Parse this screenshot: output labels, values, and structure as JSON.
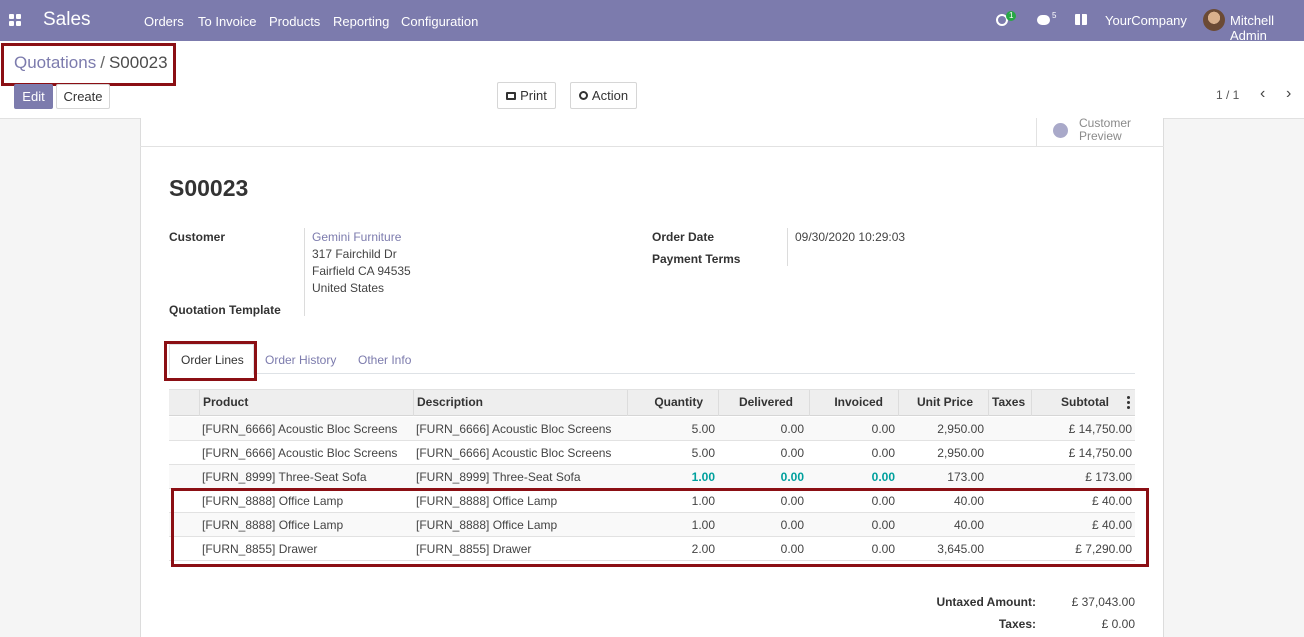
{
  "navbar": {
    "app_name": "Sales",
    "menu": [
      "Orders",
      "To Invoice",
      "Products",
      "Reporting",
      "Configuration"
    ],
    "activity_count": "1",
    "message_count": "5",
    "company": "YourCompany",
    "user": "Mitchell Admin"
  },
  "breadcrumb": {
    "parent": "Quotations",
    "separator": "/",
    "current": "S00023"
  },
  "buttons": {
    "edit": "Edit",
    "create": "Create",
    "print": "Print",
    "action": "Action"
  },
  "pager": {
    "value": "1 / 1"
  },
  "smart_button": {
    "line1": "Customer",
    "line2": "Preview"
  },
  "record": {
    "name": "S00023",
    "customer_label": "Customer",
    "customer_name": "Gemini Furniture",
    "address_line1": "317 Fairchild Dr",
    "address_line2": "Fairfield CA 94535",
    "address_line3": "United States",
    "template_label": "Quotation Template",
    "order_date_label": "Order Date",
    "order_date": "09/30/2020 10:29:03",
    "payment_terms_label": "Payment Terms"
  },
  "tabs": [
    "Order Lines",
    "Order History",
    "Other Info"
  ],
  "table": {
    "headers": [
      "Product",
      "Description",
      "Quantity",
      "Delivered",
      "Invoiced",
      "Unit Price",
      "Taxes",
      "Subtotal"
    ],
    "rows": [
      [
        "[FURN_6666] Acoustic Bloc Screens",
        "[FURN_6666] Acoustic Bloc Screens",
        "5.00",
        "0.00",
        "0.00",
        "2,950.00",
        "",
        "£ 14,750.00"
      ],
      [
        "[FURN_6666] Acoustic Bloc Screens",
        "[FURN_6666] Acoustic Bloc Screens",
        "5.00",
        "0.00",
        "0.00",
        "2,950.00",
        "",
        "£ 14,750.00"
      ],
      [
        "[FURN_8999] Three-Seat Sofa",
        "[FURN_8999] Three-Seat Sofa",
        "1.00",
        "0.00",
        "0.00",
        "173.00",
        "",
        "£ 173.00"
      ],
      [
        "[FURN_8888] Office Lamp",
        "[FURN_8888] Office Lamp",
        "1.00",
        "0.00",
        "0.00",
        "40.00",
        "",
        "£ 40.00"
      ],
      [
        "[FURN_8888] Office Lamp",
        "[FURN_8888] Office Lamp",
        "1.00",
        "0.00",
        "0.00",
        "40.00",
        "",
        "£ 40.00"
      ],
      [
        "[FURN_8855] Drawer",
        "[FURN_8855] Drawer",
        "2.00",
        "0.00",
        "0.00",
        "3,645.00",
        "",
        "£ 7,290.00"
      ]
    ]
  },
  "totals": {
    "untaxed_label": "Untaxed Amount:",
    "untaxed_value": "£ 37,043.00",
    "taxes_label": "Taxes:",
    "taxes_value": "£ 0.00"
  },
  "colors": {
    "brand": "#7c7bad",
    "highlight": "#8b0f14",
    "teal": "#00a09d"
  }
}
